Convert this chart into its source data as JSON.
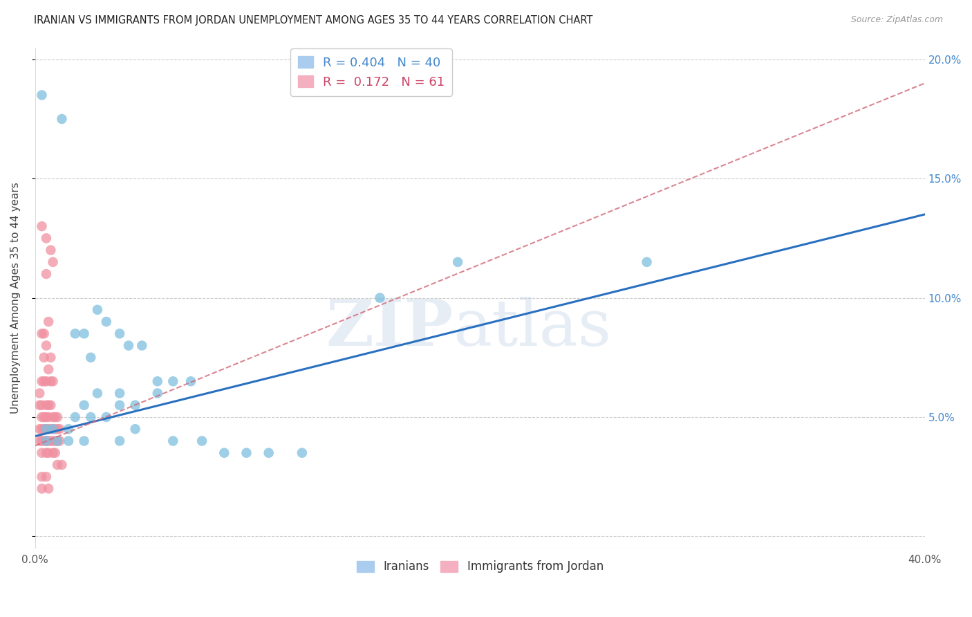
{
  "title": "IRANIAN VS IMMIGRANTS FROM JORDAN UNEMPLOYMENT AMONG AGES 35 TO 44 YEARS CORRELATION CHART",
  "source": "Source: ZipAtlas.com",
  "ylabel": "Unemployment Among Ages 35 to 44 years",
  "xlim": [
    0.0,
    0.4
  ],
  "ylim": [
    -0.005,
    0.205
  ],
  "xticks": [
    0.0,
    0.05,
    0.1,
    0.15,
    0.2,
    0.25,
    0.3,
    0.35,
    0.4
  ],
  "yticks": [
    0.0,
    0.05,
    0.1,
    0.15,
    0.2
  ],
  "blue_color": "#7fbfdf",
  "pink_color": "#f090a0",
  "blue_line_color": "#2970c0",
  "pink_line_color": "#d06878",
  "blue_line": {
    "x0": 0.0,
    "y0": 0.042,
    "x1": 0.4,
    "y1": 0.135
  },
  "pink_line": {
    "x0": 0.0,
    "y0": 0.038,
    "x1": 0.155,
    "y1": 0.075
  },
  "blue_scatter": [
    [
      0.003,
      0.185
    ],
    [
      0.012,
      0.175
    ],
    [
      0.028,
      0.095
    ],
    [
      0.032,
      0.09
    ],
    [
      0.018,
      0.085
    ],
    [
      0.022,
      0.085
    ],
    [
      0.038,
      0.085
    ],
    [
      0.042,
      0.08
    ],
    [
      0.048,
      0.08
    ],
    [
      0.025,
      0.075
    ],
    [
      0.055,
      0.065
    ],
    [
      0.062,
      0.065
    ],
    [
      0.07,
      0.065
    ],
    [
      0.055,
      0.06
    ],
    [
      0.038,
      0.06
    ],
    [
      0.028,
      0.06
    ],
    [
      0.022,
      0.055
    ],
    [
      0.038,
      0.055
    ],
    [
      0.045,
      0.055
    ],
    [
      0.018,
      0.05
    ],
    [
      0.025,
      0.05
    ],
    [
      0.032,
      0.05
    ],
    [
      0.005,
      0.045
    ],
    [
      0.008,
      0.045
    ],
    [
      0.015,
      0.045
    ],
    [
      0.045,
      0.045
    ],
    [
      0.005,
      0.04
    ],
    [
      0.01,
      0.04
    ],
    [
      0.015,
      0.04
    ],
    [
      0.022,
      0.04
    ],
    [
      0.038,
      0.04
    ],
    [
      0.062,
      0.04
    ],
    [
      0.075,
      0.04
    ],
    [
      0.085,
      0.035
    ],
    [
      0.095,
      0.035
    ],
    [
      0.105,
      0.035
    ],
    [
      0.12,
      0.035
    ],
    [
      0.19,
      0.115
    ],
    [
      0.275,
      0.115
    ],
    [
      0.155,
      0.1
    ]
  ],
  "pink_scatter": [
    [
      0.003,
      0.13
    ],
    [
      0.005,
      0.125
    ],
    [
      0.007,
      0.12
    ],
    [
      0.008,
      0.115
    ],
    [
      0.005,
      0.11
    ],
    [
      0.003,
      0.085
    ],
    [
      0.004,
      0.085
    ],
    [
      0.006,
      0.09
    ],
    [
      0.004,
      0.075
    ],
    [
      0.005,
      0.08
    ],
    [
      0.007,
      0.075
    ],
    [
      0.002,
      0.06
    ],
    [
      0.003,
      0.065
    ],
    [
      0.004,
      0.065
    ],
    [
      0.005,
      0.065
    ],
    [
      0.006,
      0.07
    ],
    [
      0.007,
      0.065
    ],
    [
      0.008,
      0.065
    ],
    [
      0.002,
      0.055
    ],
    [
      0.003,
      0.055
    ],
    [
      0.005,
      0.055
    ],
    [
      0.006,
      0.055
    ],
    [
      0.007,
      0.055
    ],
    [
      0.003,
      0.05
    ],
    [
      0.004,
      0.05
    ],
    [
      0.005,
      0.05
    ],
    [
      0.006,
      0.05
    ],
    [
      0.008,
      0.05
    ],
    [
      0.009,
      0.05
    ],
    [
      0.01,
      0.05
    ],
    [
      0.002,
      0.045
    ],
    [
      0.003,
      0.045
    ],
    [
      0.004,
      0.045
    ],
    [
      0.005,
      0.045
    ],
    [
      0.006,
      0.045
    ],
    [
      0.007,
      0.045
    ],
    [
      0.008,
      0.045
    ],
    [
      0.009,
      0.045
    ],
    [
      0.01,
      0.045
    ],
    [
      0.011,
      0.045
    ],
    [
      0.002,
      0.04
    ],
    [
      0.003,
      0.04
    ],
    [
      0.004,
      0.04
    ],
    [
      0.005,
      0.04
    ],
    [
      0.006,
      0.04
    ],
    [
      0.007,
      0.04
    ],
    [
      0.008,
      0.04
    ],
    [
      0.009,
      0.04
    ],
    [
      0.01,
      0.04
    ],
    [
      0.011,
      0.04
    ],
    [
      0.003,
      0.035
    ],
    [
      0.005,
      0.035
    ],
    [
      0.006,
      0.035
    ],
    [
      0.008,
      0.035
    ],
    [
      0.009,
      0.035
    ],
    [
      0.01,
      0.03
    ],
    [
      0.012,
      0.03
    ],
    [
      0.003,
      0.025
    ],
    [
      0.005,
      0.025
    ],
    [
      0.003,
      0.02
    ],
    [
      0.006,
      0.02
    ]
  ]
}
